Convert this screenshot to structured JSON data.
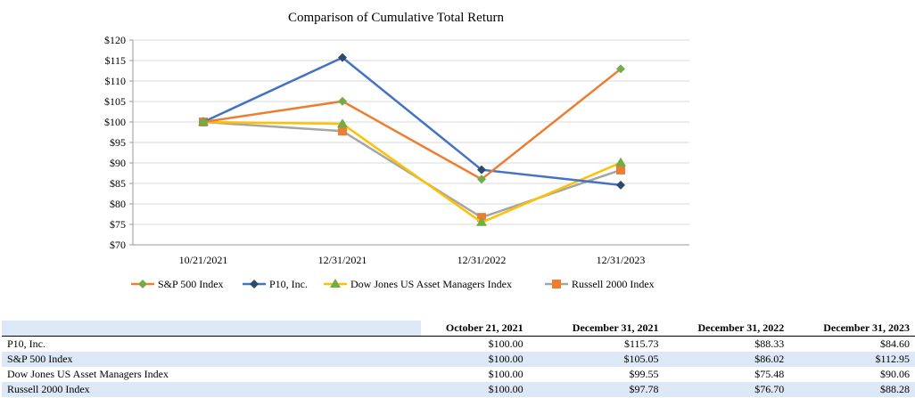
{
  "colors": {
    "sp500": "#ED7D31",
    "sp500_marker": "#70AD47",
    "p10": "#4472C4",
    "p10_marker": "#2E4A6B",
    "dowjones": "#FFC000",
    "dowjones_marker": "#70AD47",
    "russell": "#A5A5A5",
    "russell_marker": "#ED7D31",
    "grid": "#D9D9D9",
    "table_shade": "#DCE8F5"
  },
  "chart_data": {
    "type": "line",
    "title": "Comparison of Cumulative Total Return",
    "xlabel": "",
    "ylabel": "",
    "categories": [
      "10/21/2021",
      "12/31/2021",
      "12/31/2022",
      "12/31/2023"
    ],
    "ylim": [
      70,
      120
    ],
    "ytick_step": 5,
    "ytick_labels": [
      "$70",
      "$75",
      "$80",
      "$85",
      "$90",
      "$95",
      "$100",
      "$105",
      "$110",
      "$115",
      "$120"
    ],
    "grid": true,
    "legend_position": "bottom",
    "series": [
      {
        "key": "sp500",
        "name": "S&P 500 Index",
        "marker": "diamond",
        "values": [
          100.0,
          105.05,
          86.02,
          112.95
        ]
      },
      {
        "key": "p10",
        "name": "P10, Inc.",
        "marker": "diamond",
        "values": [
          100.0,
          115.73,
          88.33,
          84.6
        ]
      },
      {
        "key": "dowjones",
        "name": "Dow Jones US Asset Managers Index",
        "marker": "triangle",
        "values": [
          100.0,
          99.55,
          75.48,
          90.06
        ]
      },
      {
        "key": "russell",
        "name": "Russell 2000 Index",
        "marker": "square",
        "values": [
          100.0,
          97.78,
          76.7,
          88.28
        ]
      }
    ]
  },
  "table": {
    "headers": [
      "",
      "October 21, 2021",
      "December 31, 2021",
      "December 31, 2022",
      "December 31, 2023"
    ],
    "rows": [
      {
        "name": "P10, Inc.",
        "values": [
          "$100.00",
          "$115.73",
          "$88.33",
          "$84.60"
        ]
      },
      {
        "name": "S&P 500 Index",
        "values": [
          "$100.00",
          "$105.05",
          "$86.02",
          "$112.95"
        ]
      },
      {
        "name": "Dow Jones US Asset Managers Index",
        "values": [
          "$100.00",
          "$99.55",
          "$75.48",
          "$90.06"
        ]
      },
      {
        "name": "Russell 2000 Index",
        "values": [
          "$100.00",
          "$97.78",
          "$76.70",
          "$88.28"
        ]
      }
    ]
  }
}
